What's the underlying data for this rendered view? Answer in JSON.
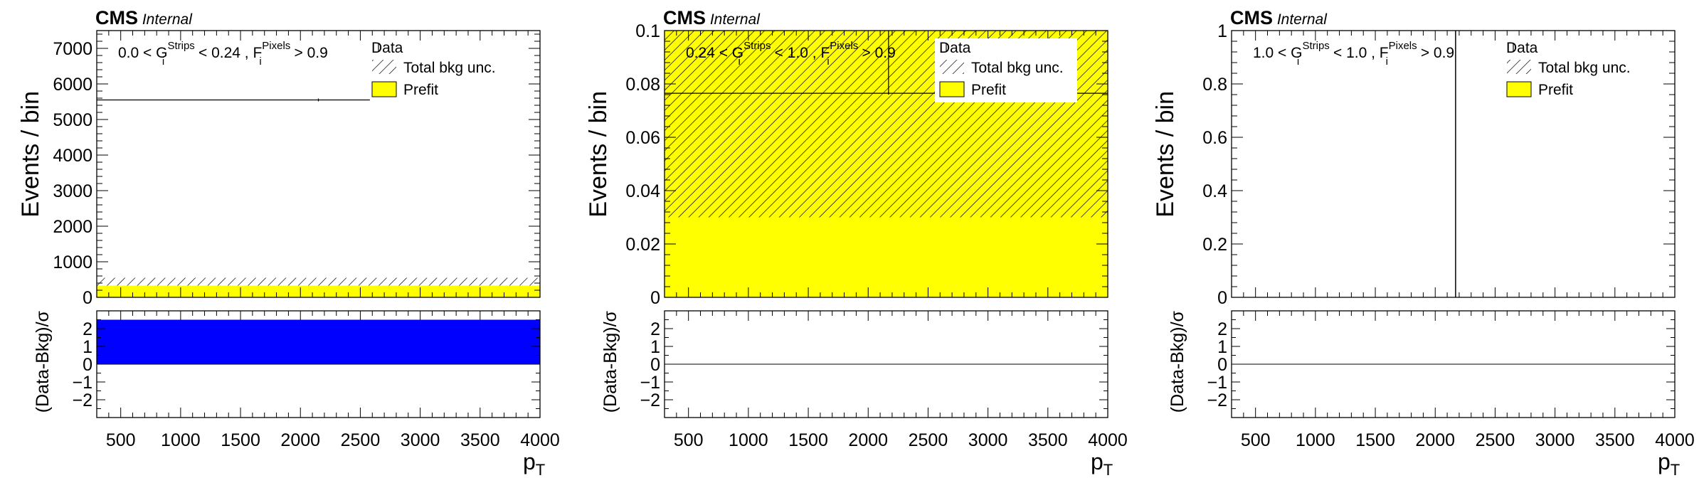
{
  "colors": {
    "prefit": "#ffff00",
    "pull_fill": "#0000ff",
    "frame": "#000000",
    "data_marker": "#000000",
    "hatch": "#000000"
  },
  "chart_data": [
    {
      "type": "bar",
      "experiment": "CMS",
      "status": "Internal",
      "region": {
        "t1": "0.0 < G",
        "sup1": "Strips",
        "sub1": "i",
        "t2": " < 0.24 , F",
        "sup2": "Pixels",
        "sub2": "i",
        "t3": " > 0.9"
      },
      "legend": [
        "Data",
        "Total bkg unc.",
        "Prefit"
      ],
      "ylabel": "Events / bin",
      "xlabel": "p",
      "xlabel_sub": "T",
      "ratio_ylabel": "(Data-Bkg)/σ",
      "xlim": [
        300,
        4000
      ],
      "ylim": [
        0,
        7500
      ],
      "ytick_step": 1000,
      "ratio_ylim": [
        -3,
        3
      ],
      "xticks": [
        500,
        1000,
        1500,
        2000,
        2500,
        3000,
        3500,
        4000
      ],
      "yticks": [
        0,
        1000,
        2000,
        3000,
        4000,
        5000,
        6000,
        7000
      ],
      "ratio_yticks": [
        -2,
        -1,
        0,
        1,
        2
      ],
      "bins": [
        [
          300,
          4000
        ]
      ],
      "prefit": [
        330
      ],
      "unc_low": [
        330
      ],
      "unc_high": [
        550
      ],
      "data": [
        {
          "x": 2150,
          "y": 5550,
          "xerr": [
            300,
            2580
          ]
        }
      ],
      "pull": [
        2.5
      ]
    },
    {
      "type": "bar",
      "experiment": "CMS",
      "status": "Internal",
      "region": {
        "t1": "0.24 < G",
        "sup1": "Strips",
        "sub1": "i",
        "t2": " < 1.0 , F",
        "sup2": "Pixels",
        "sub2": "i",
        "t3": " > 0.9"
      },
      "legend": [
        "Data",
        "Total bkg unc.",
        "Prefit"
      ],
      "ylabel": "Events / bin",
      "xlabel": "p",
      "xlabel_sub": "T",
      "ratio_ylabel": "(Data-Bkg)/σ",
      "xlim": [
        300,
        4000
      ],
      "ylim": [
        0,
        0.1
      ],
      "ytick_step": 0.02,
      "ratio_ylim": [
        -3,
        3
      ],
      "xticks": [
        500,
        1000,
        1500,
        2000,
        2500,
        3000,
        3500,
        4000
      ],
      "yticks": [
        0,
        0.02,
        0.04,
        0.06,
        0.08,
        0.1
      ],
      "ratio_yticks": [
        -2,
        -1,
        0,
        1,
        2
      ],
      "bins": [
        [
          300,
          4000
        ]
      ],
      "prefit": [
        0.1
      ],
      "unc_low": [
        0.03
      ],
      "unc_high": [
        0.104
      ],
      "data": [
        {
          "x": 2170,
          "y": 0.0765,
          "xerr": [
            300,
            4000
          ]
        }
      ],
      "pull": [
        0
      ]
    },
    {
      "type": "bar",
      "experiment": "CMS",
      "status": "Internal",
      "region": {
        "t1": "1.0 < G",
        "sup1": "Strips",
        "sub1": "i",
        "t2": " < 1.0 , F",
        "sup2": "Pixels",
        "sub2": "i",
        "t3": " > 0.9"
      },
      "legend": [
        "Data",
        "Total bkg unc.",
        "Prefit"
      ],
      "ylabel": "Events / bin",
      "xlabel": "p",
      "xlabel_sub": "T",
      "ratio_ylabel": "(Data-Bkg)/σ",
      "xlim": [
        300,
        4000
      ],
      "ylim": [
        0,
        1
      ],
      "ytick_step": 0.2,
      "ratio_ylim": [
        -3,
        3
      ],
      "xticks": [
        500,
        1000,
        1500,
        2000,
        2500,
        3000,
        3500,
        4000
      ],
      "yticks": [
        0,
        0.2,
        0.4,
        0.6,
        0.8,
        1
      ],
      "ratio_yticks": [
        -2,
        -1,
        0,
        1,
        2
      ],
      "bins": [],
      "prefit": [],
      "unc_low": [],
      "unc_high": [],
      "data": [],
      "vline_x": 2170,
      "pull": []
    }
  ]
}
